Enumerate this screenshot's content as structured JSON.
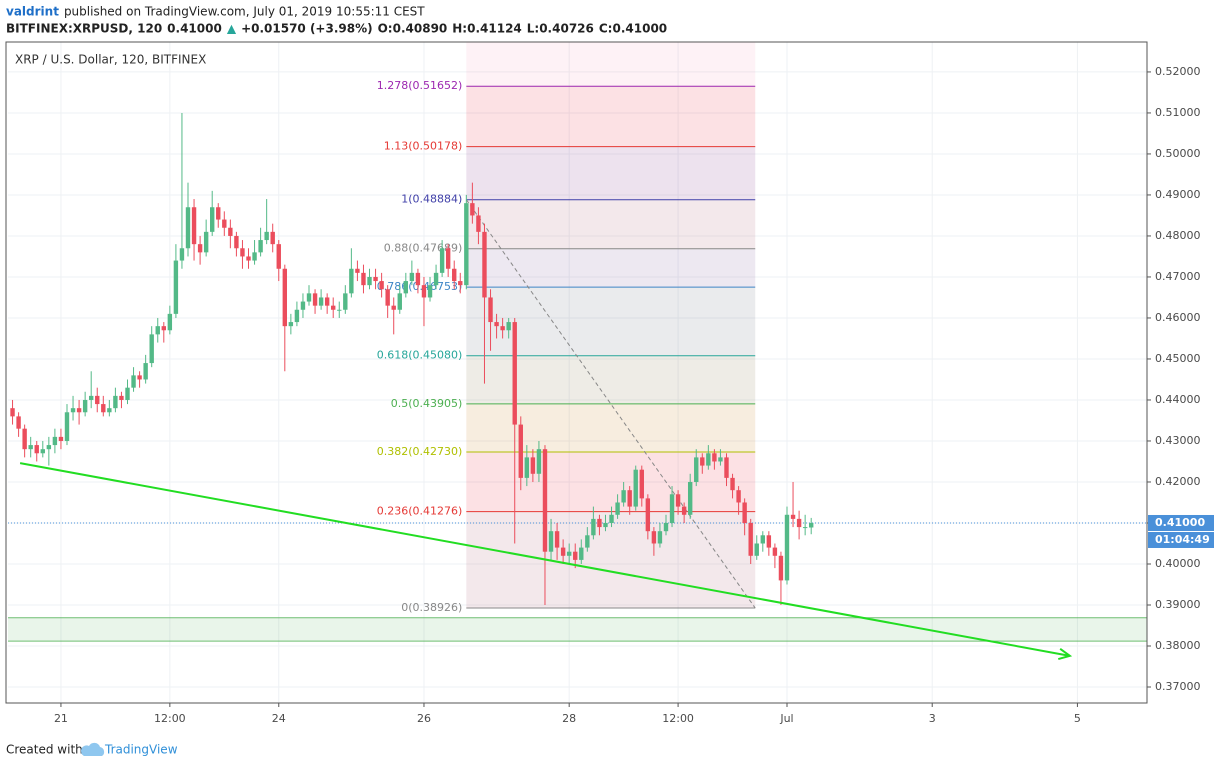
{
  "header": {
    "author": "valdrint",
    "published": "published on TradingView.com, July 01, 2019 10:55:11 CEST",
    "symbol": "BITFINEX:XRPUSD, 120",
    "price": "0.41000",
    "arrow": "▲",
    "change": "+0.01570 (+3.98%)",
    "open": "O:0.40890",
    "high": "H:0.41124",
    "low": "L:0.40726",
    "close": "C:0.41000"
  },
  "footer": {
    "created": "Created with",
    "brand": "TradingView"
  },
  "chart_data": {
    "type": "candlestick",
    "title": "XRP / U.S. Dollar, 120, BITFINEX",
    "x": [
      -16,
      -14,
      -12,
      -10,
      -8,
      -6,
      -4,
      -2,
      0,
      2,
      4,
      6,
      8,
      10,
      12,
      14,
      16,
      18,
      20,
      22,
      24,
      26,
      28,
      30,
      32,
      34,
      36,
      38,
      40,
      42,
      44,
      46,
      48,
      50,
      52,
      54,
      56,
      58,
      60,
      62,
      64,
      66,
      68,
      70,
      72,
      74,
      76,
      78,
      80,
      82,
      84,
      86,
      88,
      90,
      92,
      94,
      96,
      98,
      100,
      102,
      104,
      106,
      108,
      110,
      112,
      114,
      116,
      118,
      120,
      122,
      124,
      126,
      128,
      130,
      132,
      134,
      136,
      138,
      140,
      142,
      144,
      146,
      148,
      150,
      152,
      154,
      156,
      158,
      160,
      162,
      164,
      166,
      168,
      170,
      172,
      174,
      176,
      178,
      180,
      182,
      184,
      186,
      188,
      190,
      192,
      194,
      196,
      198,
      200,
      202,
      204,
      206,
      208,
      210,
      212,
      214,
      216,
      218,
      220,
      222,
      224,
      226,
      228,
      230,
      232,
      234,
      236,
      238,
      240,
      242,
      244,
      246,
      248
    ],
    "candles": [
      [
        0.438,
        0.44,
        0.434,
        0.436
      ],
      [
        0.436,
        0.437,
        0.431,
        0.433
      ],
      [
        0.433,
        0.434,
        0.426,
        0.428
      ],
      [
        0.428,
        0.431,
        0.426,
        0.429
      ],
      [
        0.429,
        0.43,
        0.425,
        0.427
      ],
      [
        0.427,
        0.43,
        0.426,
        0.428
      ],
      [
        0.428,
        0.431,
        0.424,
        0.429
      ],
      [
        0.429,
        0.433,
        0.427,
        0.431
      ],
      [
        0.431,
        0.433,
        0.428,
        0.43
      ],
      [
        0.43,
        0.439,
        0.429,
        0.437
      ],
      [
        0.437,
        0.441,
        0.435,
        0.438
      ],
      [
        0.438,
        0.44,
        0.434,
        0.437
      ],
      [
        0.437,
        0.442,
        0.436,
        0.44
      ],
      [
        0.44,
        0.447,
        0.438,
        0.441
      ],
      [
        0.441,
        0.443,
        0.437,
        0.439
      ],
      [
        0.439,
        0.441,
        0.436,
        0.437
      ],
      [
        0.437,
        0.44,
        0.436,
        0.438
      ],
      [
        0.438,
        0.443,
        0.437,
        0.441
      ],
      [
        0.441,
        0.442,
        0.438,
        0.44
      ],
      [
        0.44,
        0.445,
        0.439,
        0.443
      ],
      [
        0.443,
        0.448,
        0.442,
        0.446
      ],
      [
        0.446,
        0.447,
        0.443,
        0.445
      ],
      [
        0.445,
        0.451,
        0.444,
        0.449
      ],
      [
        0.449,
        0.458,
        0.448,
        0.456
      ],
      [
        0.456,
        0.46,
        0.454,
        0.458
      ],
      [
        0.458,
        0.459,
        0.454,
        0.457
      ],
      [
        0.457,
        0.463,
        0.456,
        0.461
      ],
      [
        0.461,
        0.478,
        0.46,
        0.474
      ],
      [
        0.474,
        0.51,
        0.472,
        0.477
      ],
      [
        0.477,
        0.493,
        0.475,
        0.487
      ],
      [
        0.487,
        0.489,
        0.474,
        0.478
      ],
      [
        0.478,
        0.48,
        0.473,
        0.476
      ],
      [
        0.476,
        0.484,
        0.475,
        0.481
      ],
      [
        0.481,
        0.491,
        0.48,
        0.487
      ],
      [
        0.487,
        0.488,
        0.482,
        0.484
      ],
      [
        0.484,
        0.486,
        0.48,
        0.482
      ],
      [
        0.482,
        0.484,
        0.477,
        0.48
      ],
      [
        0.48,
        0.481,
        0.475,
        0.477
      ],
      [
        0.477,
        0.479,
        0.472,
        0.475
      ],
      [
        0.475,
        0.477,
        0.472,
        0.474
      ],
      [
        0.474,
        0.479,
        0.473,
        0.476
      ],
      [
        0.476,
        0.482,
        0.475,
        0.479
      ],
      [
        0.479,
        0.489,
        0.478,
        0.481
      ],
      [
        0.481,
        0.483,
        0.476,
        0.478
      ],
      [
        0.478,
        0.479,
        0.469,
        0.472
      ],
      [
        0.472,
        0.473,
        0.447,
        0.458
      ],
      [
        0.458,
        0.461,
        0.456,
        0.459
      ],
      [
        0.459,
        0.464,
        0.458,
        0.462
      ],
      [
        0.462,
        0.466,
        0.46,
        0.464
      ],
      [
        0.464,
        0.468,
        0.463,
        0.466
      ],
      [
        0.466,
        0.467,
        0.461,
        0.463
      ],
      [
        0.463,
        0.467,
        0.462,
        0.465
      ],
      [
        0.465,
        0.466,
        0.461,
        0.463
      ],
      [
        0.463,
        0.465,
        0.46,
        0.462
      ],
      [
        0.462,
        0.464,
        0.46,
        0.462
      ],
      [
        0.462,
        0.468,
        0.461,
        0.466
      ],
      [
        0.466,
        0.477,
        0.465,
        0.472
      ],
      [
        0.472,
        0.474,
        0.469,
        0.471
      ],
      [
        0.471,
        0.473,
        0.466,
        0.468
      ],
      [
        0.468,
        0.472,
        0.467,
        0.47
      ],
      [
        0.47,
        0.472,
        0.467,
        0.469
      ],
      [
        0.469,
        0.471,
        0.465,
        0.467
      ],
      [
        0.467,
        0.468,
        0.46,
        0.463
      ],
      [
        0.463,
        0.465,
        0.456,
        0.462
      ],
      [
        0.462,
        0.468,
        0.461,
        0.466
      ],
      [
        0.466,
        0.471,
        0.465,
        0.469
      ],
      [
        0.469,
        0.474,
        0.468,
        0.471
      ],
      [
        0.471,
        0.472,
        0.466,
        0.468
      ],
      [
        0.468,
        0.47,
        0.458,
        0.465
      ],
      [
        0.465,
        0.47,
        0.464,
        0.468
      ],
      [
        0.468,
        0.473,
        0.467,
        0.471
      ],
      [
        0.471,
        0.479,
        0.47,
        0.477
      ],
      [
        0.477,
        0.478,
        0.47,
        0.472
      ],
      [
        0.472,
        0.474,
        0.467,
        0.469
      ],
      [
        0.469,
        0.471,
        0.466,
        0.468
      ],
      [
        0.468,
        0.49,
        0.467,
        0.488
      ],
      [
        0.488,
        0.493,
        0.483,
        0.485
      ],
      [
        0.485,
        0.487,
        0.478,
        0.481
      ],
      [
        0.481,
        0.483,
        0.444,
        0.465
      ],
      [
        0.465,
        0.467,
        0.452,
        0.459
      ],
      [
        0.459,
        0.461,
        0.455,
        0.458
      ],
      [
        0.458,
        0.46,
        0.455,
        0.457
      ],
      [
        0.457,
        0.46,
        0.455,
        0.459
      ],
      [
        0.459,
        0.46,
        0.405,
        0.434
      ],
      [
        0.434,
        0.436,
        0.418,
        0.421
      ],
      [
        0.421,
        0.429,
        0.419,
        0.426
      ],
      [
        0.426,
        0.428,
        0.42,
        0.422
      ],
      [
        0.422,
        0.43,
        0.42,
        0.428
      ],
      [
        0.428,
        0.429,
        0.39,
        0.403
      ],
      [
        0.403,
        0.411,
        0.401,
        0.408
      ],
      [
        0.408,
        0.41,
        0.401,
        0.404
      ],
      [
        0.404,
        0.406,
        0.4,
        0.402
      ],
      [
        0.402,
        0.405,
        0.4,
        0.403
      ],
      [
        0.403,
        0.405,
        0.399,
        0.401
      ],
      [
        0.401,
        0.406,
        0.4,
        0.404
      ],
      [
        0.404,
        0.409,
        0.403,
        0.407
      ],
      [
        0.407,
        0.414,
        0.406,
        0.411
      ],
      [
        0.411,
        0.412,
        0.407,
        0.409
      ],
      [
        0.409,
        0.412,
        0.408,
        0.41
      ],
      [
        0.41,
        0.414,
        0.409,
        0.412
      ],
      [
        0.412,
        0.417,
        0.411,
        0.415
      ],
      [
        0.415,
        0.42,
        0.414,
        0.418
      ],
      [
        0.418,
        0.419,
        0.412,
        0.414
      ],
      [
        0.414,
        0.424,
        0.413,
        0.423
      ],
      [
        0.423,
        0.424,
        0.414,
        0.416
      ],
      [
        0.416,
        0.417,
        0.406,
        0.408
      ],
      [
        0.408,
        0.409,
        0.402,
        0.405
      ],
      [
        0.405,
        0.41,
        0.404,
        0.408
      ],
      [
        0.408,
        0.412,
        0.407,
        0.41
      ],
      [
        0.41,
        0.419,
        0.409,
        0.417
      ],
      [
        0.417,
        0.418,
        0.412,
        0.414
      ],
      [
        0.414,
        0.415,
        0.41,
        0.412
      ],
      [
        0.412,
        0.422,
        0.411,
        0.42
      ],
      [
        0.42,
        0.428,
        0.419,
        0.426
      ],
      [
        0.426,
        0.427,
        0.422,
        0.424
      ],
      [
        0.424,
        0.429,
        0.423,
        0.427
      ],
      [
        0.427,
        0.428,
        0.423,
        0.425
      ],
      [
        0.425,
        0.428,
        0.424,
        0.426
      ],
      [
        0.426,
        0.427,
        0.419,
        0.421
      ],
      [
        0.421,
        0.422,
        0.416,
        0.418
      ],
      [
        0.418,
        0.419,
        0.412,
        0.415
      ],
      [
        0.415,
        0.416,
        0.407,
        0.41
      ],
      [
        0.41,
        0.411,
        0.4,
        0.402
      ],
      [
        0.402,
        0.407,
        0.401,
        0.405
      ],
      [
        0.405,
        0.408,
        0.403,
        0.407
      ],
      [
        0.407,
        0.408,
        0.402,
        0.404
      ],
      [
        0.404,
        0.405,
        0.399,
        0.402
      ],
      [
        0.402,
        0.403,
        0.39,
        0.396
      ],
      [
        0.396,
        0.414,
        0.395,
        0.412
      ],
      [
        0.412,
        0.42,
        0.409,
        0.411
      ],
      [
        0.411,
        0.413,
        0.406,
        0.409
      ],
      [
        0.409,
        0.412,
        0.407,
        0.409
      ],
      [
        0.4089,
        0.41124,
        0.40726,
        0.41
      ]
    ],
    "up_color": "#53b987",
    "down_color": "#eb4d5c",
    "xlim": [
      -17.5,
      359
    ],
    "xticks": [
      {
        "value": 0,
        "label": "21"
      },
      {
        "value": 36,
        "label": "12:00"
      },
      {
        "value": 72,
        "label": "24"
      },
      {
        "value": 120,
        "label": "26"
      },
      {
        "value": 168,
        "label": "28"
      },
      {
        "value": 204,
        "label": "12:00"
      },
      {
        "value": 240,
        "label": "Jul"
      },
      {
        "value": 288,
        "label": "3"
      },
      {
        "value": 336,
        "label": "5"
      }
    ],
    "ylim": [
      0.3661,
      0.5273
    ],
    "yticks": [
      {
        "value": 0.37,
        "label": "0.37000"
      },
      {
        "value": 0.38,
        "label": "0.38000"
      },
      {
        "value": 0.39,
        "label": "0.39000"
      },
      {
        "value": 0.4,
        "label": "0.40000"
      },
      {
        "value": 0.41,
        "label": "0.41000"
      },
      {
        "value": 0.42,
        "label": "0.42000"
      },
      {
        "value": 0.43,
        "label": "0.43000"
      },
      {
        "value": 0.44,
        "label": "0.44000"
      },
      {
        "value": 0.45,
        "label": "0.45000"
      },
      {
        "value": 0.46,
        "label": "0.46000"
      },
      {
        "value": 0.47,
        "label": "0.47000"
      },
      {
        "value": 0.48,
        "label": "0.48000"
      },
      {
        "value": 0.49,
        "label": "0.49000"
      },
      {
        "value": 0.5,
        "label": "0.50000"
      },
      {
        "value": 0.51,
        "label": "0.51000"
      },
      {
        "value": 0.52,
        "label": "0.52000"
      }
    ],
    "grid": true,
    "last_price": {
      "value": 0.41,
      "label": "0.41000",
      "color": "#4a90d9"
    },
    "countdown": "01:04:49",
    "fibonacci": {
      "x": [
        134,
        229.5
      ],
      "band_color": "#e91e63",
      "levels": [
        {
          "label": "1.278(0.51652)",
          "value": 0.51652,
          "color": "#9c27b0"
        },
        {
          "label": "1.13(0.50178)",
          "value": 0.50178,
          "color": "#e53935"
        },
        {
          "label": "1(0.48884)",
          "value": 0.48884,
          "color": "#3f3fa8"
        },
        {
          "label": "0.88(0.47689)",
          "value": 0.47689,
          "color": "#888888"
        },
        {
          "label": "0.786(0.46753)",
          "value": 0.46753,
          "color": "#3d85c6"
        },
        {
          "label": "0.618(0.45080)",
          "value": 0.4508,
          "color": "#26a69a"
        },
        {
          "label": "0.5(0.43905)",
          "value": 0.43905,
          "color": "#4caf50"
        },
        {
          "label": "0.382(0.42730)",
          "value": 0.4273,
          "color": "#b0c000"
        },
        {
          "label": "0.236(0.41276)",
          "value": 0.41276,
          "color": "#e53935"
        },
        {
          "label": "0(0.38926)",
          "value": 0.38926,
          "color": "#888888"
        }
      ],
      "trend": {
        "x": [
          134,
          229.5
        ],
        "y": [
          0.48884,
          0.38926
        ],
        "color": "#888888"
      }
    },
    "trendline": {
      "x": [
        -13.5,
        333.5
      ],
      "y": [
        0.4246,
        0.3776
      ],
      "color": "#22dd22"
    },
    "support_zone": {
      "y": [
        0.3812,
        0.3869
      ],
      "color": "#4caf50"
    }
  }
}
